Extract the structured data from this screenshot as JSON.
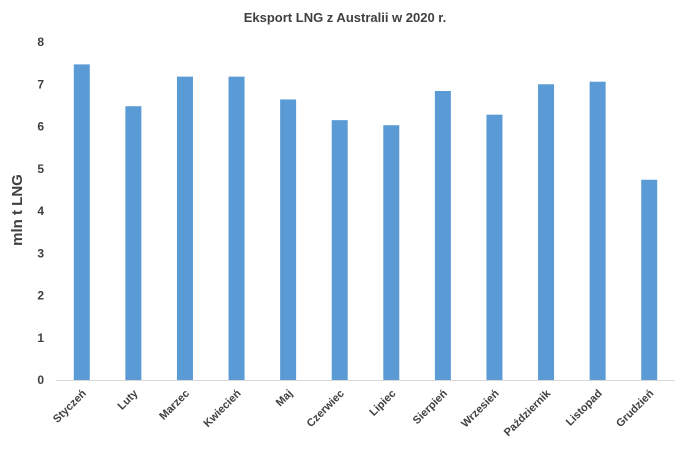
{
  "chart_data": {
    "type": "bar",
    "title": "Eksport LNG z Australii w 2020 r.",
    "xlabel": "",
    "ylabel": "mln t LNG",
    "categories": [
      "Styczeń",
      "Luty",
      "Marzec",
      "Kwiecień",
      "Maj",
      "Czerwiec",
      "Lipiec",
      "Sierpień",
      "Wrzesień",
      "Październik",
      "Listopad",
      "Grudzień"
    ],
    "values": [
      7.47,
      6.48,
      7.18,
      7.18,
      6.64,
      6.15,
      6.03,
      6.84,
      6.28,
      7.0,
      7.06,
      4.74
    ],
    "ylim": [
      0,
      8
    ],
    "yticks": [
      "0",
      "1",
      "2",
      "3",
      "4",
      "5",
      "6",
      "7",
      "8"
    ],
    "grid": false,
    "legend": "none",
    "colors": {
      "bar": "#5b9bd5",
      "axis": "#d9d9d9",
      "text": "#404040"
    }
  }
}
